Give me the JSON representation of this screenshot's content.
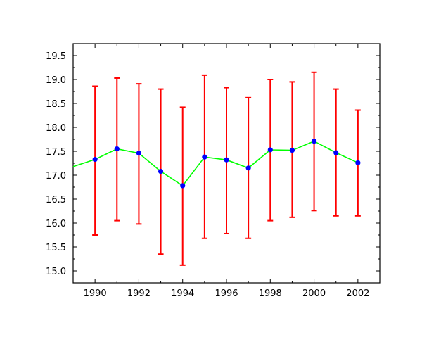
{
  "chart_data": {
    "type": "line",
    "title": "",
    "xlabel": "",
    "ylabel": "",
    "x": [
      1990,
      1991,
      1992,
      1993,
      1994,
      1995,
      1996,
      1997,
      1998,
      1999,
      2000,
      2001,
      2002
    ],
    "series": [
      {
        "values": [
          17.33,
          17.55,
          17.46,
          17.08,
          16.78,
          17.38,
          17.32,
          17.15,
          17.53,
          17.52,
          17.71,
          17.47,
          17.26
        ],
        "error_upper": [
          18.86,
          19.03,
          18.91,
          18.8,
          18.42,
          19.09,
          18.83,
          18.62,
          19.0,
          18.95,
          19.15,
          18.8,
          18.36
        ],
        "error_lower": [
          15.75,
          16.05,
          15.98,
          15.35,
          15.12,
          15.68,
          15.78,
          15.68,
          16.05,
          16.12,
          16.26,
          16.15,
          16.15
        ],
        "line_start": {
          "x": 1989.0,
          "y": 17.18
        },
        "line_color": "#00ff00",
        "marker_color": "#0000ff",
        "error_color": "#ff0000"
      }
    ],
    "x_ticks": [
      "1990",
      "1992",
      "1994",
      "1996",
      "1998",
      "2000",
      "2002"
    ],
    "y_ticks": [
      "15.0",
      "15.5",
      "16.0",
      "16.5",
      "17.0",
      "17.5",
      "18.0",
      "18.5",
      "19.0",
      "19.5"
    ],
    "xlim": [
      1989.0,
      2003.0
    ],
    "ylim": [
      14.75,
      19.75
    ],
    "grid": false,
    "legend": "none"
  }
}
